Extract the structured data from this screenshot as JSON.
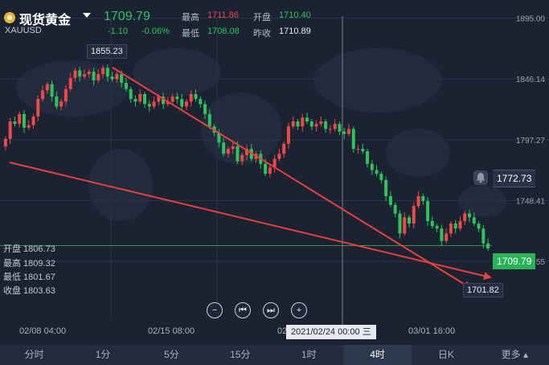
{
  "header": {
    "title": "现货黄金",
    "symbol": "XAUUSD",
    "price": "1709.79",
    "change": "-1.10",
    "change_pct": "-0.06%",
    "high_label": "最高",
    "high": "1711.86",
    "open_label": "开盘",
    "open": "1710.40",
    "low_label": "最低",
    "low": "1708.08",
    "prev_label": "昨收",
    "prev": "1710.89"
  },
  "ohlc_panel": {
    "open": "开盘 1806.73",
    "high": "最高 1809.32",
    "low": "最低 1801.67",
    "close": "收盘 1803.63"
  },
  "annotations": {
    "max_label": "1855.23",
    "min_label": "1701.82"
  },
  "price_tags": {
    "alert": "1772.73",
    "current": "1709.79"
  },
  "crosshair_label": "2021/02/24 00:00 三",
  "controls": {
    "zoom_out": "−",
    "prev": "⏮",
    "next": "⏭",
    "zoom_in": "+"
  },
  "tabs": [
    {
      "label": "分时"
    },
    {
      "label": "1分"
    },
    {
      "label": "5分"
    },
    {
      "label": "15分"
    },
    {
      "label": "1时"
    },
    {
      "label": "4时",
      "active": true
    },
    {
      "label": "日K"
    },
    {
      "label": "更多"
    }
  ],
  "colors": {
    "up": "#ef4848",
    "down": "#2ec45c",
    "background": "#1b2232",
    "trend_line": "#e8403c"
  },
  "chart_data": {
    "type": "candlestick",
    "ylim": [
      1690,
      1896
    ],
    "yticks": [
      "1895.00",
      "1846.14",
      "1797.27",
      "1748.41",
      "1699.55"
    ],
    "xticks": [
      "02/08 04:00",
      "02/15 08:00",
      "02",
      "03/01 16:00"
    ],
    "current_price": 1709.79,
    "alert_price": 1772.73,
    "annotations": [
      {
        "label": "1855.23",
        "value": 1855.23
      },
      {
        "label": "1701.82",
        "value": 1701.82
      }
    ],
    "close": [
      1798,
      1812,
      1810,
      1818,
      1807,
      1809,
      1816,
      1830,
      1837,
      1842,
      1832,
      1824,
      1828,
      1838,
      1847,
      1853,
      1848,
      1850,
      1852,
      1845,
      1850,
      1855,
      1848,
      1846,
      1850,
      1843,
      1838,
      1830,
      1828,
      1834,
      1826,
      1824,
      1828,
      1832,
      1826,
      1828,
      1832,
      1830,
      1824,
      1828,
      1834,
      1830,
      1826,
      1818,
      1808,
      1803,
      1795,
      1786,
      1790,
      1792,
      1780,
      1785,
      1790,
      1782,
      1786,
      1778,
      1770,
      1775,
      1782,
      1786,
      1794,
      1808,
      1812,
      1808,
      1815,
      1812,
      1808,
      1810,
      1812,
      1806,
      1806,
      1810,
      1804,
      1802,
      1806,
      1790,
      1790,
      1788,
      1778,
      1773,
      1770,
      1765,
      1752,
      1745,
      1738,
      1722,
      1735,
      1730,
      1744,
      1752,
      1748,
      1732,
      1728,
      1726,
      1716,
      1722,
      1730,
      1726,
      1732,
      1738,
      1735,
      1730,
      1726,
      1714,
      1710
    ]
  }
}
